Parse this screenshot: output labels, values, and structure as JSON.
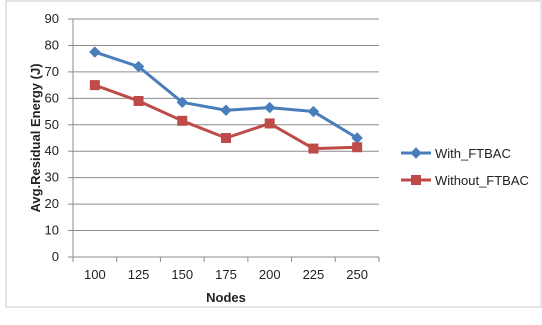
{
  "chart_data": {
    "type": "line",
    "title": "",
    "xlabel": "Nodes",
    "ylabel": "Avg.Residual Energy (J)",
    "categories": [
      "100",
      "125",
      "150",
      "175",
      "200",
      "225",
      "250"
    ],
    "ylim": [
      0,
      90
    ],
    "yticks": [
      0,
      10,
      20,
      30,
      40,
      50,
      60,
      70,
      80,
      90
    ],
    "ytick_labels": [
      "0",
      "10",
      "20",
      "30",
      "40",
      "50",
      "60",
      "70",
      "80",
      "90"
    ],
    "grid": "horizontal",
    "legend_position": "right",
    "series": [
      {
        "name": "With_FTBAC",
        "values": [
          77.5,
          72,
          58.5,
          55.5,
          56.5,
          55,
          45
        ],
        "color": "#4a7ebb",
        "marker": "diamond"
      },
      {
        "name": "Without_FTBAC",
        "values": [
          65,
          59,
          51.5,
          45,
          50.5,
          41,
          41.5
        ],
        "color": "#be4b48",
        "marker": "square"
      }
    ]
  }
}
